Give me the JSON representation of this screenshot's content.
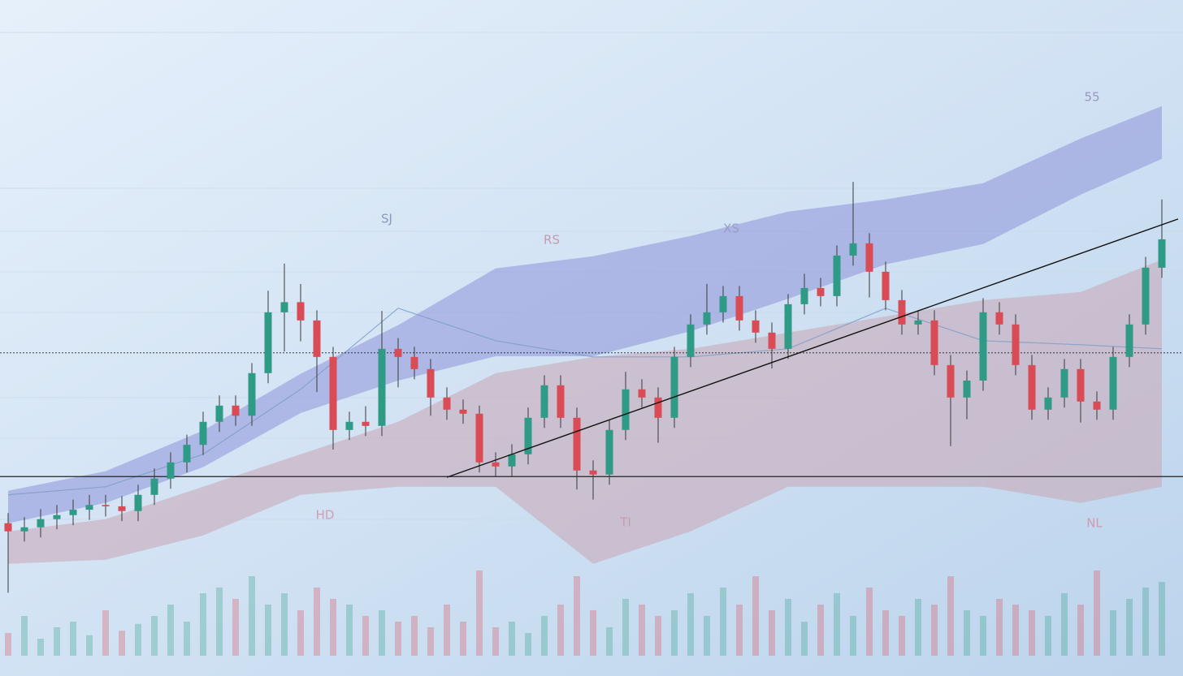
{
  "chart_data": {
    "type": "candlestick",
    "ylim": [
      0,
      100
    ],
    "up_color": "#2f9a86",
    "down_color": "#d94b55",
    "open": [
      22.6,
      21.4,
      22.0,
      23.2,
      23.8,
      24.6,
      25.3,
      25.1,
      24.4,
      26.8,
      29.2,
      31.6,
      34.2,
      37.6,
      40.0,
      38.5,
      44.8,
      53.8,
      55.3,
      52.6,
      47.2,
      36.4,
      37.6,
      37.0,
      48.4,
      47.2,
      45.4,
      41.2,
      39.4,
      38.8,
      31.6,
      31.0,
      32.8,
      38.2,
      43.0,
      38.2,
      30.4,
      29.8,
      36.4,
      42.4,
      41.2,
      38.2,
      47.2,
      52.0,
      53.8,
      56.2,
      52.6,
      50.8,
      48.4,
      55.0,
      57.4,
      56.2,
      62.2,
      64.0,
      59.8,
      55.6,
      52.0,
      52.6,
      46.0,
      41.2,
      43.7,
      53.8,
      52.0,
      46.0,
      39.4,
      41.2,
      45.4,
      40.6,
      39.4,
      47.2,
      52.0,
      60.4
    ],
    "high": [
      24.1,
      23.5,
      24.7,
      25.3,
      26.1,
      26.8,
      26.8,
      26.6,
      28.3,
      30.7,
      33.1,
      35.7,
      39.1,
      41.5,
      41.5,
      46.3,
      57.0,
      61.0,
      58.0,
      54.1,
      48.7,
      39.1,
      39.9,
      54.0,
      50.0,
      48.7,
      46.9,
      42.7,
      40.9,
      40.0,
      33.1,
      34.3,
      39.7,
      44.5,
      44.5,
      39.7,
      31.9,
      37.9,
      45.0,
      43.9,
      42.7,
      48.7,
      53.5,
      58.0,
      57.7,
      57.7,
      54.1,
      52.3,
      56.5,
      59.5,
      58.9,
      63.7,
      73.1,
      65.5,
      61.3,
      57.1,
      54.1,
      54.1,
      47.5,
      45.2,
      55.9,
      55.3,
      53.5,
      47.5,
      42.7,
      46.9,
      46.9,
      42.1,
      48.7,
      53.5,
      62.0,
      70.5
    ],
    "low": [
      12.3,
      19.9,
      20.5,
      21.7,
      22.3,
      23.1,
      23.6,
      22.9,
      22.9,
      25.3,
      27.7,
      30.1,
      32.7,
      36.1,
      37.0,
      37.0,
      43.3,
      48.0,
      49.5,
      42.0,
      33.5,
      34.9,
      35.5,
      35.5,
      42.7,
      43.9,
      38.5,
      37.9,
      37.3,
      30.1,
      29.5,
      29.5,
      31.3,
      36.7,
      36.7,
      27.6,
      26.1,
      28.3,
      34.9,
      39.7,
      34.5,
      36.7,
      45.7,
      50.5,
      52.3,
      51.1,
      49.3,
      45.5,
      46.9,
      53.5,
      54.7,
      54.7,
      60.7,
      56.0,
      54.1,
      50.5,
      50.5,
      44.5,
      34.0,
      38.0,
      42.2,
      50.5,
      44.5,
      37.9,
      37.9,
      39.7,
      37.5,
      37.9,
      37.9,
      45.7,
      50.5,
      58.9
    ],
    "close": [
      21.4,
      22.0,
      23.2,
      23.8,
      24.6,
      25.3,
      25.1,
      24.4,
      26.8,
      29.2,
      31.6,
      34.2,
      37.6,
      40.0,
      38.5,
      44.8,
      53.8,
      55.3,
      52.6,
      47.2,
      36.4,
      37.6,
      37.0,
      48.4,
      47.2,
      45.4,
      41.2,
      39.4,
      38.8,
      31.6,
      31.0,
      32.8,
      38.2,
      43.0,
      38.2,
      30.4,
      29.8,
      36.4,
      42.4,
      41.2,
      38.2,
      47.2,
      52.0,
      53.8,
      56.2,
      52.6,
      50.8,
      48.4,
      55.0,
      57.4,
      56.2,
      62.2,
      64.0,
      59.8,
      55.6,
      52.0,
      52.6,
      46.0,
      41.2,
      43.7,
      53.8,
      52.0,
      46.0,
      39.4,
      41.2,
      45.4,
      40.6,
      39.4,
      47.2,
      52.0,
      60.4,
      64.6
    ],
    "volume": {
      "ylim": [
        0,
        100
      ],
      "values": [
        20,
        35,
        15,
        25,
        30,
        18,
        40,
        22,
        28,
        35,
        45,
        30,
        55,
        60,
        50,
        70,
        45,
        55,
        40,
        60,
        50,
        45,
        35,
        40,
        30,
        35,
        25,
        45,
        30,
        75,
        25,
        30,
        20,
        35,
        45,
        70,
        40,
        25,
        50,
        45,
        35,
        40,
        55,
        35,
        60,
        45,
        70,
        40,
        50,
        30,
        45,
        55,
        35,
        60,
        40,
        35,
        50,
        45,
        70,
        40,
        35,
        50,
        45,
        40,
        35,
        55,
        45,
        75,
        40,
        50,
        60,
        65
      ]
    },
    "bands": [
      {
        "color": "#8e93d8",
        "x": [
          0,
          6,
          12,
          18,
          24,
          30,
          36,
          42,
          48,
          54,
          60,
          66,
          71
        ],
        "upper": [
          27.4,
          30.3,
          36.3,
          44.7,
          51.9,
          60.3,
          62.1,
          65.1,
          68.7,
          70.5,
          72.9,
          79.5,
          84.3
        ],
        "lower": [
          22.6,
          25.6,
          30.9,
          38.9,
          43.7,
          47.3,
          47.3,
          51.0,
          55.8,
          60.9,
          63.9,
          71.2,
          76.5
        ]
      },
      {
        "color": "#c9a6b4",
        "x": [
          0,
          6,
          12,
          18,
          24,
          30,
          36,
          42,
          48,
          54,
          60,
          66,
          71
        ],
        "upper": [
          21.4,
          23.2,
          28.0,
          32.8,
          37.6,
          44.8,
          47.2,
          48.4,
          50.8,
          53.2,
          55.6,
          56.8,
          61.6
        ],
        "lower": [
          16.6,
          17.2,
          20.8,
          26.8,
          28.0,
          28.0,
          16.6,
          21.4,
          28.0,
          28.0,
          28.0,
          25.6,
          28.0
        ]
      }
    ],
    "ma": {
      "color": "#7a9cc8",
      "x": [
        0,
        6,
        12,
        18,
        24,
        30,
        36,
        42,
        48,
        54,
        60,
        66,
        71
      ],
      "values": [
        26.8,
        28.0,
        32.8,
        42.4,
        54.4,
        49.6,
        47.2,
        47.2,
        48.4,
        54.4,
        49.6,
        49.0,
        48.4
      ]
    },
    "hlines": [
      {
        "value": 29.5,
        "style": "solid"
      },
      {
        "value": 47.8,
        "style": "dotted"
      }
    ],
    "trendline": {
      "x": [
        27,
        72
      ],
      "values": [
        29.4,
        67.6
      ]
    },
    "annotations": [
      {
        "text": "SJ",
        "color": "#8a9bb8"
      },
      {
        "text": "RS",
        "color": "#c59aae"
      },
      {
        "text": "XS",
        "color": "#9b9cc4"
      },
      {
        "text": "HD",
        "color": "#d0a0b0"
      },
      {
        "text": "TI",
        "color": "#bfa0ae"
      },
      {
        "text": "NL",
        "color": "#d09aac"
      },
      {
        "text": "55",
        "color": "#9a96bd"
      }
    ]
  }
}
